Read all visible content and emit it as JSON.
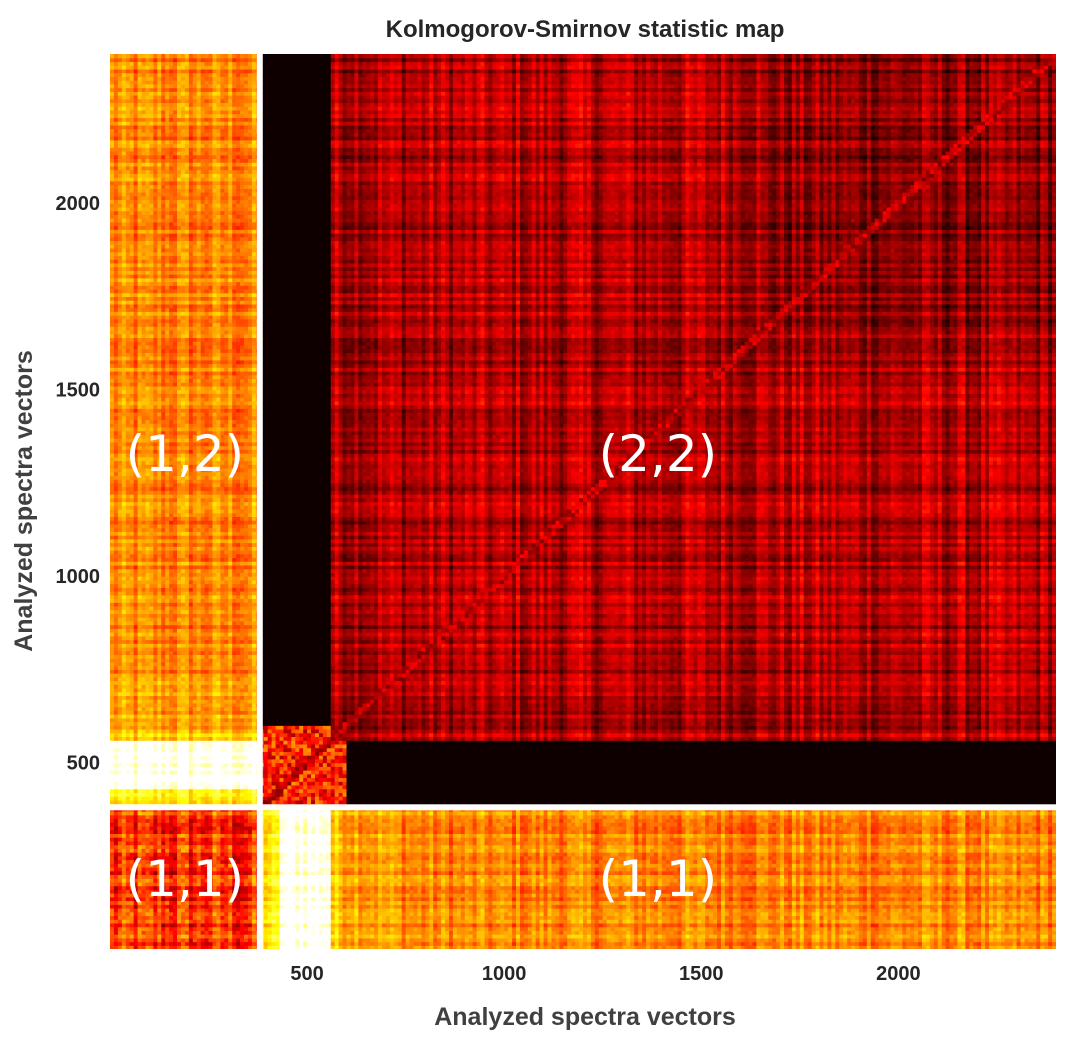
{
  "chart_data": {
    "type": "heatmap",
    "title": "Kolmogorov-Smirnov statistic map",
    "xlabel": "Analyzed spectra vectors",
    "ylabel": "Analyzed spectra vectors",
    "xlim": [
      0,
      2400
    ],
    "ylim": [
      0,
      2400
    ],
    "x_ticks": [
      500,
      1000,
      1500,
      2000
    ],
    "y_ticks": [
      500,
      1000,
      1500,
      2000
    ],
    "colormap": "hot",
    "grid": false,
    "block_divider": 380,
    "blocks": [
      {
        "label": "(1,2)",
        "x_range": [
          0,
          380
        ],
        "y_range": [
          380,
          2400
        ]
      },
      {
        "label": "(2,2)",
        "x_range": [
          380,
          2400
        ],
        "y_range": [
          380,
          2400
        ]
      },
      {
        "label": "(1,1)",
        "x_range": [
          0,
          380
        ],
        "y_range": [
          0,
          380
        ]
      },
      {
        "label": "(1,1)",
        "x_range": [
          380,
          2400
        ],
        "y_range": [
          0,
          380
        ]
      }
    ]
  },
  "colors": {
    "background": "#ffffff",
    "divider": "#ffffff",
    "low": "#000000",
    "high": "#ffffff"
  }
}
